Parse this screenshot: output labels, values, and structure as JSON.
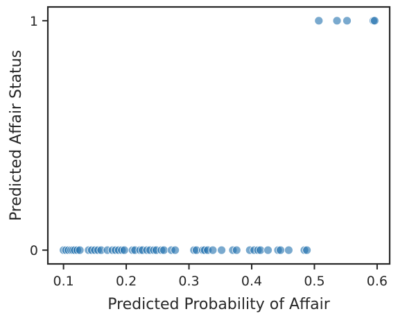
{
  "chart_data": {
    "type": "scatter",
    "title": "",
    "xlabel": "Predicted Probability of Affair",
    "ylabel": "Predicted Affair Status",
    "xlim": [
      0.075,
      0.62
    ],
    "ylim": [
      -0.06,
      1.06
    ],
    "x_ticks": [
      "0.1",
      "0.2",
      "0.3",
      "0.4",
      "0.5",
      "0.6"
    ],
    "x_tick_values": [
      0.1,
      0.2,
      0.3,
      0.4,
      0.5,
      0.6
    ],
    "y_ticks": [
      "0",
      "1"
    ],
    "y_tick_values": [
      0,
      1
    ],
    "grid": false,
    "legend": "none",
    "marker_color": "#1f6fad",
    "points": [
      {
        "x": 0.1,
        "y": 0
      },
      {
        "x": 0.104,
        "y": 0
      },
      {
        "x": 0.108,
        "y": 0
      },
      {
        "x": 0.112,
        "y": 0
      },
      {
        "x": 0.115,
        "y": 0
      },
      {
        "x": 0.118,
        "y": 0
      },
      {
        "x": 0.122,
        "y": 0
      },
      {
        "x": 0.126,
        "y": 0
      },
      {
        "x": 0.14,
        "y": 0
      },
      {
        "x": 0.145,
        "y": 0
      },
      {
        "x": 0.15,
        "y": 0
      },
      {
        "x": 0.155,
        "y": 0
      },
      {
        "x": 0.16,
        "y": 0
      },
      {
        "x": 0.17,
        "y": 0
      },
      {
        "x": 0.178,
        "y": 0
      },
      {
        "x": 0.183,
        "y": 0
      },
      {
        "x": 0.188,
        "y": 0
      },
      {
        "x": 0.193,
        "y": 0
      },
      {
        "x": 0.197,
        "y": 0
      },
      {
        "x": 0.21,
        "y": 0
      },
      {
        "x": 0.214,
        "y": 0
      },
      {
        "x": 0.222,
        "y": 0
      },
      {
        "x": 0.226,
        "y": 0
      },
      {
        "x": 0.233,
        "y": 0
      },
      {
        "x": 0.238,
        "y": 0
      },
      {
        "x": 0.244,
        "y": 0
      },
      {
        "x": 0.248,
        "y": 0
      },
      {
        "x": 0.256,
        "y": 0
      },
      {
        "x": 0.26,
        "y": 0
      },
      {
        "x": 0.272,
        "y": 0
      },
      {
        "x": 0.278,
        "y": 0
      },
      {
        "x": 0.308,
        "y": 0
      },
      {
        "x": 0.312,
        "y": 0
      },
      {
        "x": 0.322,
        "y": 0
      },
      {
        "x": 0.325,
        "y": 0
      },
      {
        "x": 0.33,
        "y": 0
      },
      {
        "x": 0.338,
        "y": 0
      },
      {
        "x": 0.352,
        "y": 0
      },
      {
        "x": 0.37,
        "y": 0
      },
      {
        "x": 0.376,
        "y": 0
      },
      {
        "x": 0.397,
        "y": 0
      },
      {
        "x": 0.404,
        "y": 0
      },
      {
        "x": 0.41,
        "y": 0
      },
      {
        "x": 0.414,
        "y": 0
      },
      {
        "x": 0.426,
        "y": 0
      },
      {
        "x": 0.442,
        "y": 0
      },
      {
        "x": 0.446,
        "y": 0
      },
      {
        "x": 0.459,
        "y": 0
      },
      {
        "x": 0.484,
        "y": 0
      },
      {
        "x": 0.488,
        "y": 0
      },
      {
        "x": 0.507,
        "y": 1
      },
      {
        "x": 0.536,
        "y": 1
      },
      {
        "x": 0.552,
        "y": 1
      },
      {
        "x": 0.594,
        "y": 1
      },
      {
        "x": 0.596,
        "y": 1
      }
    ]
  }
}
